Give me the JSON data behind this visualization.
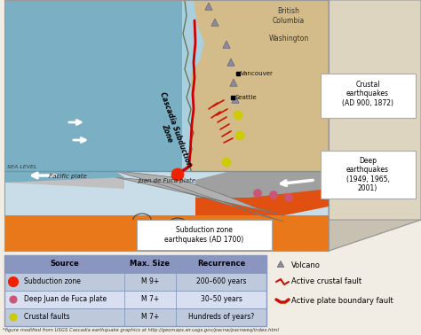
{
  "background_color": "#f2ede4",
  "diagram_bg": "#c8dde8",
  "ocean_top_color": "#7aafc4",
  "land_top_color": "#d4bc8a",
  "ocean_inlet_color": "#aad0e0",
  "front_mantle_color": "#e8781a",
  "front_gray_top": "#aaaaaa",
  "front_gray_dark": "#888888",
  "front_gray_slab": "#999999",
  "front_pacific_plate": "#b8b8b8",
  "box_outline": "#999999",
  "table_header_color": "#8a96c0",
  "table_row1_color": "#bec9dc",
  "table_row2_color": "#d8dff0",
  "table_border_color": "#8899bb",
  "table_header": [
    "Source",
    "Max. Size",
    "Recurrence"
  ],
  "table_rows": [
    [
      "Subduction zone",
      "M 9+",
      "200–600 years"
    ],
    [
      "Deep Juan de Fuca plate",
      "M 7+",
      "30–50 years"
    ],
    [
      "Crustal faults",
      "M 7+",
      "Hundreds of years?"
    ]
  ],
  "dot_colors": [
    "#ee2200",
    "#cc5577",
    "#cccc00"
  ],
  "footnote": "*figure modified from USGS Cascadia earthquake graphics at http://geomaps.wr.usgs.gov/pacnw/pacnweq/index.html",
  "volcano_color": "#888899",
  "fault_color": "#cc1100",
  "label_color": "#222222"
}
